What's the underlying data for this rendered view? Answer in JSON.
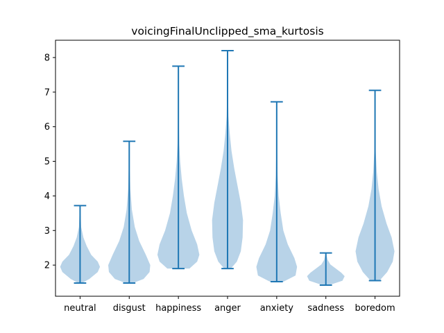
{
  "chart_data": {
    "type": "violin",
    "title": "voicingFinalUnclipped_sma_kurtosis",
    "xlabel": "",
    "ylabel": "",
    "ylim": [
      1.1,
      8.5
    ],
    "yticks": [
      2,
      3,
      4,
      5,
      6,
      7,
      8
    ],
    "categories": [
      "neutral",
      "disgust",
      "happiness",
      "anger",
      "anxiety",
      "sadness",
      "boredom"
    ],
    "violin_color": "#b8d3e8",
    "line_color": "#1f77b4",
    "violins": [
      {
        "category": "neutral",
        "min": 1.48,
        "max": 3.72,
        "profile": [
          [
            1.48,
            0.08
          ],
          [
            1.6,
            0.42
          ],
          [
            1.8,
            0.8
          ],
          [
            1.95,
            0.9
          ],
          [
            2.1,
            0.8
          ],
          [
            2.3,
            0.5
          ],
          [
            2.55,
            0.3
          ],
          [
            2.8,
            0.15
          ],
          [
            3.1,
            0.05
          ],
          [
            3.72,
            0.01
          ]
        ]
      },
      {
        "category": "disgust",
        "min": 1.48,
        "max": 5.58,
        "profile": [
          [
            1.48,
            0.15
          ],
          [
            1.6,
            0.65
          ],
          [
            1.8,
            0.92
          ],
          [
            2.0,
            0.95
          ],
          [
            2.3,
            0.75
          ],
          [
            2.7,
            0.45
          ],
          [
            3.1,
            0.25
          ],
          [
            3.6,
            0.12
          ],
          [
            4.2,
            0.05
          ],
          [
            4.8,
            0.02
          ],
          [
            5.58,
            0.01
          ]
        ]
      },
      {
        "category": "happiness",
        "min": 1.9,
        "max": 7.75,
        "profile": [
          [
            1.9,
            0.5
          ],
          [
            2.1,
            0.85
          ],
          [
            2.3,
            0.95
          ],
          [
            2.6,
            0.85
          ],
          [
            3.0,
            0.6
          ],
          [
            3.5,
            0.38
          ],
          [
            4.0,
            0.25
          ],
          [
            4.5,
            0.15
          ],
          [
            5.0,
            0.08
          ],
          [
            5.5,
            0.04
          ],
          [
            6.2,
            0.02
          ],
          [
            7.75,
            0.01
          ]
        ]
      },
      {
        "category": "anger",
        "min": 1.9,
        "max": 8.2,
        "profile": [
          [
            1.9,
            0.15
          ],
          [
            2.1,
            0.42
          ],
          [
            2.4,
            0.6
          ],
          [
            2.8,
            0.68
          ],
          [
            3.3,
            0.7
          ],
          [
            3.8,
            0.6
          ],
          [
            4.3,
            0.45
          ],
          [
            4.8,
            0.3
          ],
          [
            5.3,
            0.18
          ],
          [
            5.8,
            0.1
          ],
          [
            6.3,
            0.04
          ],
          [
            7.0,
            0.02
          ],
          [
            8.2,
            0.01
          ]
        ]
      },
      {
        "category": "anxiety",
        "min": 1.52,
        "max": 6.72,
        "profile": [
          [
            1.52,
            0.3
          ],
          [
            1.7,
            0.85
          ],
          [
            1.95,
            0.92
          ],
          [
            2.2,
            0.8
          ],
          [
            2.6,
            0.5
          ],
          [
            3.0,
            0.3
          ],
          [
            3.5,
            0.18
          ],
          [
            4.0,
            0.09
          ],
          [
            4.6,
            0.04
          ],
          [
            5.3,
            0.02
          ],
          [
            6.72,
            0.01
          ]
        ]
      },
      {
        "category": "sadness",
        "min": 1.42,
        "max": 2.35,
        "profile": [
          [
            1.42,
            0.15
          ],
          [
            1.55,
            0.75
          ],
          [
            1.68,
            0.85
          ],
          [
            1.78,
            0.7
          ],
          [
            1.9,
            0.45
          ],
          [
            2.02,
            0.2
          ],
          [
            2.15,
            0.08
          ],
          [
            2.35,
            0.01
          ]
        ]
      },
      {
        "category": "boredom",
        "min": 1.55,
        "max": 7.05,
        "profile": [
          [
            1.55,
            0.2
          ],
          [
            1.8,
            0.55
          ],
          [
            2.1,
            0.8
          ],
          [
            2.4,
            0.88
          ],
          [
            2.8,
            0.75
          ],
          [
            3.2,
            0.52
          ],
          [
            3.7,
            0.3
          ],
          [
            4.2,
            0.16
          ],
          [
            4.7,
            0.08
          ],
          [
            5.3,
            0.03
          ],
          [
            6.0,
            0.015
          ],
          [
            7.05,
            0.01
          ]
        ]
      }
    ]
  }
}
